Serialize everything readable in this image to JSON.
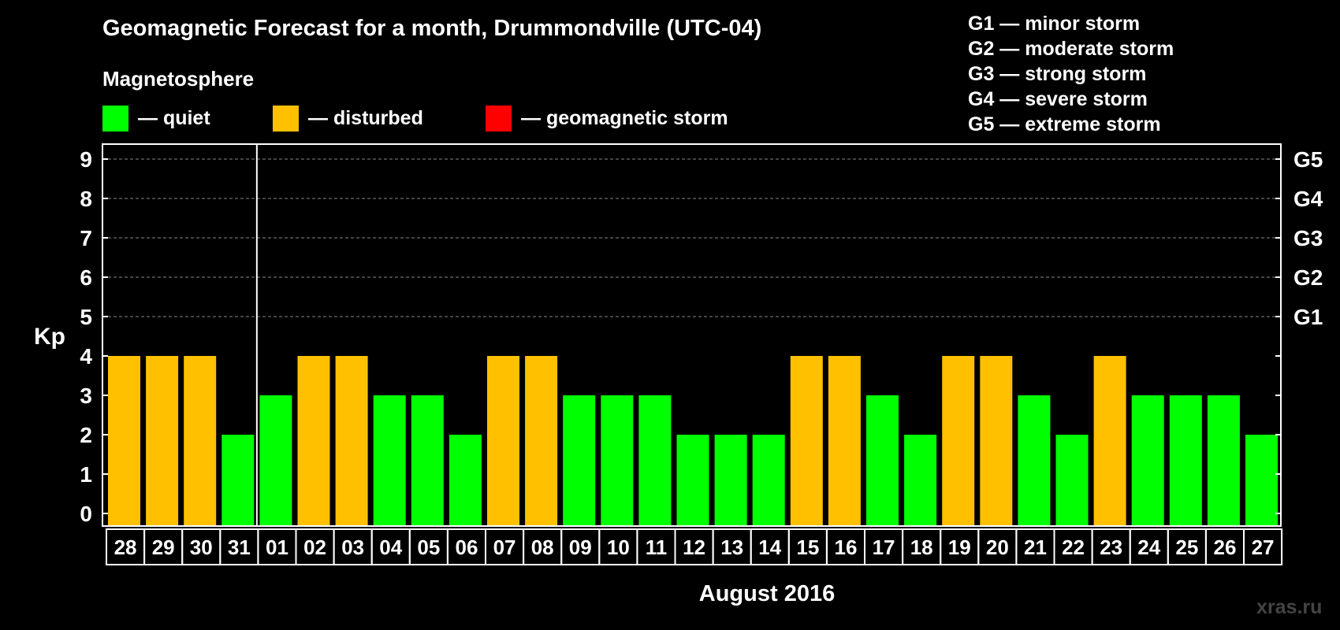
{
  "title": "Geomagnetic Forecast for a month, Drummondville (UTC-04)",
  "subtitle": "Magnetosphere",
  "legend": [
    {
      "label": "— quiet",
      "color": "#00ff00"
    },
    {
      "label": "— disturbed",
      "color": "#ffc000"
    },
    {
      "label": "— geomagnetic storm",
      "color": "#ff0000"
    }
  ],
  "g_scale": [
    "G1 — minor storm",
    "G2 — moderate storm",
    "G3 — strong storm",
    "G4 — severe storm",
    "G5 — extreme storm"
  ],
  "watermark": "xras.ru",
  "chart_data": {
    "type": "bar",
    "title": "Geomagnetic Forecast for a month, Drummondville (UTC-04)",
    "ylabel": "Kp",
    "xlabel": "August 2016",
    "ylim": [
      0,
      9
    ],
    "yticks": [
      "0",
      "1",
      "2",
      "3",
      "4",
      "5",
      "6",
      "7",
      "8",
      "9"
    ],
    "right_ticks": [
      {
        "kp": 5,
        "label": "G1"
      },
      {
        "kp": 6,
        "label": "G2"
      },
      {
        "kp": 7,
        "label": "G3"
      },
      {
        "kp": 8,
        "label": "G4"
      },
      {
        "kp": 9,
        "label": "G5"
      }
    ],
    "grid": true,
    "colors": {
      "quiet": "#00ff00",
      "disturbed": "#ffc000",
      "storm": "#ff0000"
    },
    "categories": [
      "28",
      "29",
      "30",
      "31",
      "01",
      "02",
      "03",
      "04",
      "05",
      "06",
      "07",
      "08",
      "09",
      "10",
      "11",
      "12",
      "13",
      "14",
      "15",
      "16",
      "17",
      "18",
      "19",
      "20",
      "21",
      "22",
      "23",
      "24",
      "25",
      "26",
      "27"
    ],
    "values": [
      4,
      4,
      4,
      2,
      3,
      4,
      4,
      3,
      3,
      2,
      4,
      4,
      3,
      3,
      3,
      2,
      2,
      2,
      4,
      4,
      3,
      2,
      4,
      4,
      3,
      2,
      4,
      3,
      3,
      3,
      2
    ],
    "month_separator_after": "31"
  }
}
